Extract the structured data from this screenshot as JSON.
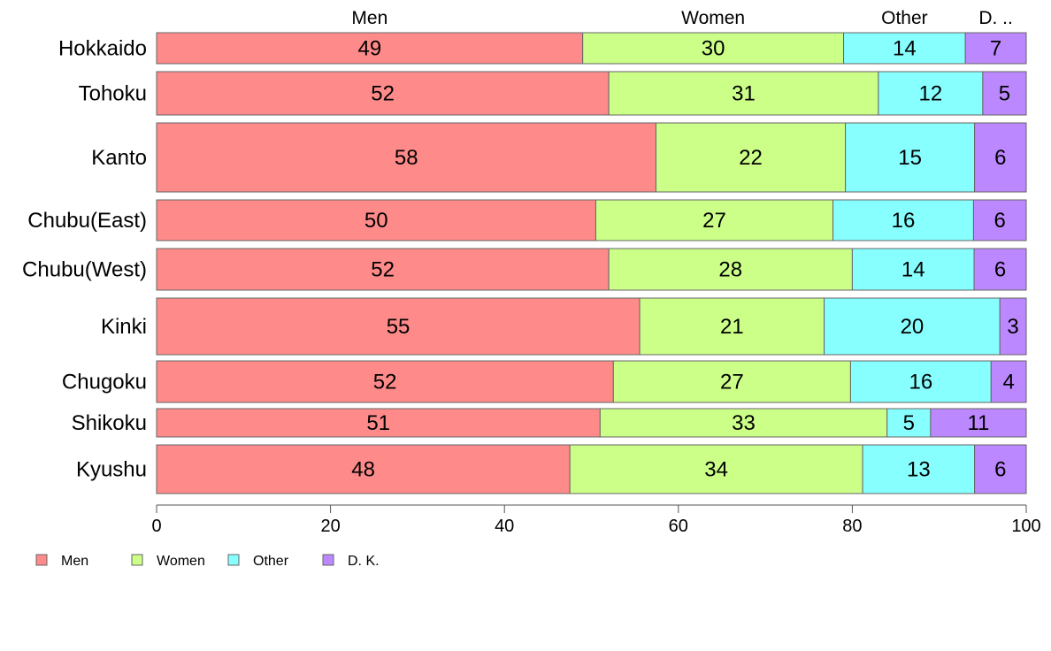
{
  "colors": {
    "men": "#FF8A8A",
    "women": "#CCFF88",
    "other": "#88FFFF",
    "dk": "#BB88FF",
    "stroke": "#666666"
  },
  "chart_data": {
    "type": "bar",
    "orientation": "horizontal",
    "stacked": true,
    "categories": [
      "Hokkaido",
      "Tohoku",
      "Kanto",
      "Chubu(East)",
      "Chubu(West)",
      "Kinki",
      "Chugoku",
      "Shikoku",
      "Kyushu"
    ],
    "series": [
      {
        "name": "Men",
        "values": [
          49,
          52,
          58,
          50,
          52,
          55,
          52,
          51,
          48
        ]
      },
      {
        "name": "Women",
        "values": [
          30,
          31,
          22,
          27,
          28,
          21,
          27,
          33,
          34
        ]
      },
      {
        "name": "Other",
        "values": [
          14,
          12,
          15,
          16,
          14,
          20,
          16,
          5,
          13
        ]
      },
      {
        "name": "D. K.",
        "values": [
          7,
          5,
          6,
          6,
          6,
          3,
          4,
          11,
          6
        ]
      }
    ],
    "top_labels": [
      "Men",
      "Women",
      "Other",
      "D. .."
    ],
    "xlim": [
      0,
      100
    ],
    "xticks": [
      0,
      20,
      40,
      60,
      80,
      100
    ],
    "legend": {
      "position": "bottom-left",
      "items": [
        "Men",
        "Women",
        "Other",
        "D. K."
      ]
    }
  }
}
